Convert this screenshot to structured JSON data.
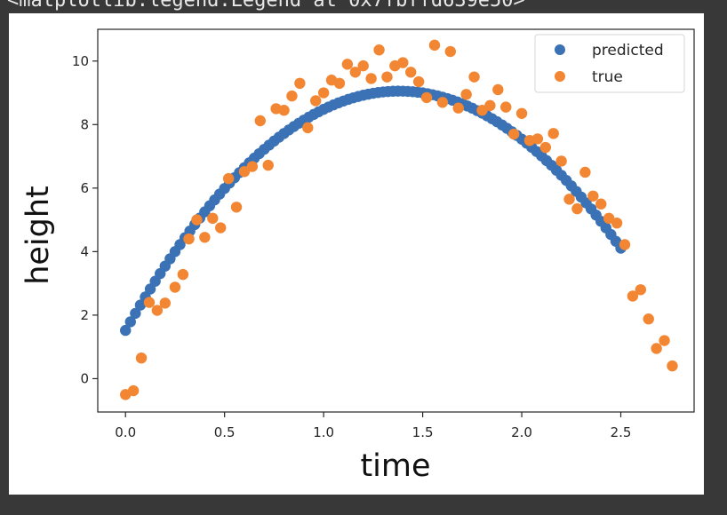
{
  "output_repr": "<matplotlib.legend.Legend at 0x7fbffd639e50>",
  "colors": {
    "predicted": "#3a72b5",
    "true": "#f28632",
    "axes": "#262626",
    "background": "#ffffff"
  },
  "chart_data": {
    "type": "scatter",
    "title": "",
    "xlabel": "time",
    "ylabel": "height",
    "xlim": [
      -0.14,
      2.87
    ],
    "ylim": [
      -1.05,
      11.0
    ],
    "xticks": [
      0.0,
      0.5,
      1.0,
      1.5,
      2.0,
      2.5
    ],
    "xtick_labels": [
      "0.0",
      "0.5",
      "1.0",
      "1.5",
      "2.0",
      "2.5"
    ],
    "yticks": [
      0,
      2,
      4,
      6,
      8,
      10
    ],
    "ytick_labels": [
      "0",
      "2",
      "4",
      "6",
      "8",
      "10"
    ],
    "grid": false,
    "legend_position": "upper right",
    "series": [
      {
        "name": "predicted",
        "model": "quadratic",
        "coefficients": {
          "a": -3.95,
          "b": 10.91,
          "c": 1.52
        },
        "x_start": 0.0,
        "x_end": 2.5,
        "x_step": 0.025
      },
      {
        "name": "true",
        "points": [
          [
            0.0,
            -0.5
          ],
          [
            0.04,
            -0.38
          ],
          [
            0.08,
            0.65
          ],
          [
            0.12,
            2.4
          ],
          [
            0.16,
            2.15
          ],
          [
            0.2,
            2.38
          ],
          [
            0.25,
            2.88
          ],
          [
            0.29,
            3.28
          ],
          [
            0.32,
            4.4
          ],
          [
            0.36,
            5.0
          ],
          [
            0.4,
            4.45
          ],
          [
            0.44,
            5.05
          ],
          [
            0.48,
            4.75
          ],
          [
            0.52,
            6.3
          ],
          [
            0.56,
            5.4
          ],
          [
            0.6,
            6.52
          ],
          [
            0.64,
            6.68
          ],
          [
            0.68,
            8.12
          ],
          [
            0.72,
            6.72
          ],
          [
            0.76,
            8.5
          ],
          [
            0.8,
            8.45
          ],
          [
            0.84,
            8.9
          ],
          [
            0.88,
            9.3
          ],
          [
            0.92,
            7.9
          ],
          [
            0.96,
            8.75
          ],
          [
            1.0,
            9.0
          ],
          [
            1.04,
            9.4
          ],
          [
            1.08,
            9.3
          ],
          [
            1.12,
            9.9
          ],
          [
            1.16,
            9.65
          ],
          [
            1.2,
            9.85
          ],
          [
            1.24,
            9.45
          ],
          [
            1.28,
            10.35
          ],
          [
            1.32,
            9.5
          ],
          [
            1.36,
            9.85
          ],
          [
            1.4,
            9.95
          ],
          [
            1.44,
            9.65
          ],
          [
            1.48,
            9.35
          ],
          [
            1.52,
            8.85
          ],
          [
            1.56,
            10.5
          ],
          [
            1.6,
            8.7
          ],
          [
            1.64,
            10.3
          ],
          [
            1.68,
            8.52
          ],
          [
            1.72,
            8.95
          ],
          [
            1.76,
            9.5
          ],
          [
            1.8,
            8.45
          ],
          [
            1.84,
            8.6
          ],
          [
            1.88,
            9.1
          ],
          [
            1.92,
            8.55
          ],
          [
            1.96,
            7.7
          ],
          [
            2.0,
            8.35
          ],
          [
            2.04,
            7.5
          ],
          [
            2.08,
            7.55
          ],
          [
            2.12,
            7.28
          ],
          [
            2.16,
            7.72
          ],
          [
            2.2,
            6.85
          ],
          [
            2.24,
            5.65
          ],
          [
            2.28,
            5.35
          ],
          [
            2.32,
            6.5
          ],
          [
            2.36,
            5.75
          ],
          [
            2.4,
            5.5
          ],
          [
            2.44,
            5.05
          ],
          [
            2.48,
            4.9
          ],
          [
            2.52,
            4.22
          ],
          [
            2.56,
            2.6
          ],
          [
            2.6,
            2.8
          ],
          [
            2.64,
            1.88
          ],
          [
            2.68,
            0.95
          ],
          [
            2.72,
            1.2
          ],
          [
            2.76,
            0.4
          ]
        ]
      }
    ]
  }
}
